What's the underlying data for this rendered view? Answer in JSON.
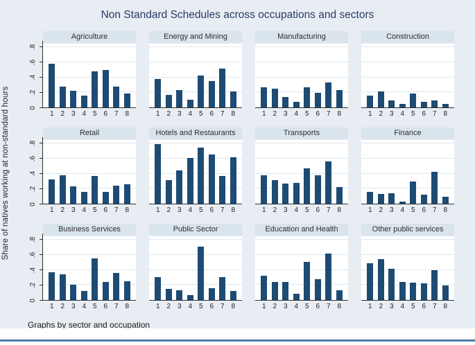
{
  "figure": {
    "title": "Non Standard Schedules across occupations and sectors",
    "ylabel": "Share of natives working at non-standard hours",
    "note": "Graphs by sector and occupation"
  },
  "colors": {
    "background": "#e7edf2",
    "panel_title_strip": "#d9e4ec",
    "plot_background": "#ffffff",
    "bar": "#1d4b73",
    "gridline": "#dde7ee",
    "title_text": "#2b3a68",
    "axis_text": "#222222",
    "bottom_accent_line": "#4a7aa8"
  },
  "chart_data": {
    "type": "bar",
    "layout": "small-multiples 3 rows x 4 columns",
    "title": "Non Standard Schedules across occupations and sectors",
    "ylabel": "Share of natives working at non-standard hours",
    "note": "Graphs by sector and occupation",
    "categories": [
      "1",
      "2",
      "3",
      "4",
      "5",
      "6",
      "7",
      "8"
    ],
    "y_ticks": [
      "0",
      ".2",
      ".4",
      ".6",
      ".8"
    ],
    "y_tick_values": [
      0,
      0.2,
      0.4,
      0.6,
      0.8
    ],
    "ylim": [
      0,
      0.8
    ],
    "grid": true,
    "bar_color": "#1d4b73",
    "panels": [
      {
        "title": "Agriculture",
        "values": [
          0.58,
          0.28,
          0.22,
          0.16,
          0.48,
          0.5,
          0.28,
          0.18
        ]
      },
      {
        "title": "Energy and Mining",
        "values": [
          0.38,
          0.17,
          0.23,
          0.1,
          0.42,
          0.35,
          0.52,
          0.21
        ]
      },
      {
        "title": "Manufacturing",
        "values": [
          0.27,
          0.25,
          0.14,
          0.07,
          0.27,
          0.19,
          0.33,
          0.23
        ]
      },
      {
        "title": "Construction",
        "values": [
          0.16,
          0.21,
          0.09,
          0.05,
          0.18,
          0.07,
          0.09,
          0.05
        ]
      },
      {
        "title": "Retail",
        "values": [
          0.32,
          0.38,
          0.23,
          0.16,
          0.37,
          0.16,
          0.24,
          0.26
        ]
      },
      {
        "title": "Hotels and Restaurants",
        "values": [
          0.79,
          0.31,
          0.44,
          0.61,
          0.75,
          0.65,
          0.37,
          0.62
        ]
      },
      {
        "title": "Transports",
        "values": [
          0.38,
          0.31,
          0.27,
          0.28,
          0.47,
          0.38,
          0.56,
          0.22
        ]
      },
      {
        "title": "Finance",
        "values": [
          0.16,
          0.13,
          0.14,
          0.03,
          0.29,
          0.12,
          0.42,
          0.09
        ]
      },
      {
        "title": "Business Services",
        "values": [
          0.37,
          0.34,
          0.2,
          0.12,
          0.55,
          0.24,
          0.36,
          0.25
        ]
      },
      {
        "title": "Public Sector",
        "values": [
          0.3,
          0.15,
          0.13,
          0.06,
          0.71,
          0.16,
          0.3,
          0.12
        ]
      },
      {
        "title": "Education and Health",
        "values": [
          0.32,
          0.24,
          0.24,
          0.08,
          0.51,
          0.28,
          0.62,
          0.13
        ]
      },
      {
        "title": "Other public services",
        "values": [
          0.49,
          0.54,
          0.41,
          0.24,
          0.23,
          0.22,
          0.4,
          0.19
        ]
      }
    ]
  }
}
